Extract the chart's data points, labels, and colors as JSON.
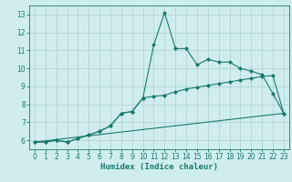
{
  "xlabel": "Humidex (Indice chaleur)",
  "bg_color": "#d0eded",
  "line_color": "#1a7a6a",
  "grid_color": "#b0d4d4",
  "xlim": [
    -0.5,
    23.5
  ],
  "ylim": [
    5.5,
    13.5
  ],
  "xticks": [
    0,
    1,
    2,
    3,
    4,
    5,
    6,
    7,
    8,
    9,
    10,
    11,
    12,
    13,
    14,
    15,
    16,
    17,
    18,
    19,
    20,
    21,
    22,
    23
  ],
  "yticks": [
    6,
    7,
    8,
    9,
    10,
    11,
    12,
    13
  ],
  "line1_x": [
    0,
    1,
    2,
    3,
    4,
    5,
    6,
    7,
    8,
    9,
    10,
    11,
    12,
    13,
    14,
    15,
    16,
    17,
    18,
    19,
    20,
    21,
    22,
    23
  ],
  "line1_y": [
    5.9,
    5.9,
    6.0,
    5.9,
    6.1,
    6.3,
    6.5,
    6.8,
    7.5,
    7.6,
    8.35,
    11.3,
    13.1,
    11.1,
    11.1,
    10.2,
    10.5,
    10.35,
    10.35,
    10.0,
    9.85,
    9.65,
    8.6,
    7.5
  ],
  "line2_x": [
    0,
    1,
    2,
    3,
    4,
    5,
    6,
    7,
    8,
    9,
    10,
    11,
    12,
    13,
    14,
    15,
    16,
    17,
    18,
    19,
    20,
    21,
    22,
    23
  ],
  "line2_y": [
    5.9,
    5.9,
    6.0,
    5.9,
    6.1,
    6.3,
    6.5,
    6.8,
    7.5,
    7.6,
    8.35,
    8.45,
    8.5,
    8.7,
    8.85,
    8.95,
    9.05,
    9.15,
    9.25,
    9.35,
    9.45,
    9.55,
    9.6,
    7.5
  ],
  "line3_x": [
    0,
    23
  ],
  "line3_y": [
    5.9,
    7.5
  ],
  "figsize": [
    3.2,
    2.0
  ],
  "dpi": 100
}
